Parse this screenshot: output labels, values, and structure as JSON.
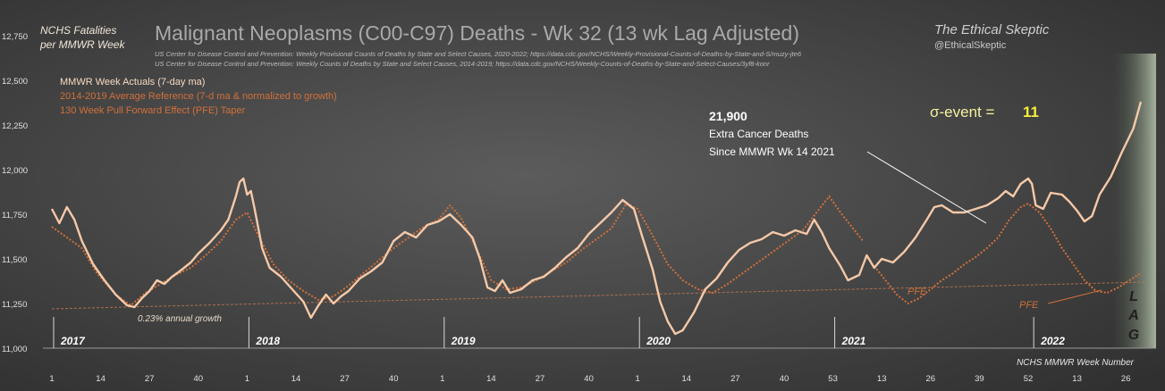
{
  "chart_data": {
    "type": "line",
    "title": "Malignant Neoplasms (C00-C97) Deaths - Wk 32 (13 wk Lag Adjusted)",
    "sources": [
      "US Center for Disease Control and Prevention: Weekly  Provisional Counts of Deaths by State and Select Causes, 2020-2022; https://data.cdc.gov/NCHS/Weekly-Provisional-Counts-of-Deaths-by-State-and-S/muzy-jte6",
      "US Center for Disease Control and Prevention: Weekly  Counts of Deaths by State and Select Causes, 2014-2019; https://data.cdc.gov/NCHS/Weekly-Counts-of-Deaths-by-State-and-Select-Causes/3yf8-konr"
    ],
    "brand": {
      "name": "The Ethical Skeptic",
      "handle": "@EthicalSkeptic"
    },
    "ylabel": "NCHS Fatalities\nper MMWR Week",
    "xlabel": "NCHS MMWR Week Number",
    "ylim": [
      11000,
      12750
    ],
    "yticks": [
      "11,000",
      "11,250",
      "11,500",
      "11,750",
      "12,000",
      "12,250",
      "12,500",
      "12,750"
    ],
    "xticks": [
      "1",
      "14",
      "27",
      "40",
      "1",
      "14",
      "27",
      "40",
      "1",
      "14",
      "27",
      "40",
      "1",
      "14",
      "27",
      "40",
      "53",
      "13",
      "26",
      "39",
      "52",
      "13",
      "26"
    ],
    "years": [
      "2017",
      "2018",
      "2019",
      "2020",
      "2021",
      "2022"
    ],
    "legend": [
      "MMWR Week Actuals (7-day ma)",
      "2014-2019 Average Reference  (7-d ma & normalized to growth)",
      "130 Week Pull Forward Effect (PFE) Taper"
    ],
    "annotations": {
      "growth": "0.23% annual growth",
      "excess_value": "21,900",
      "excess_line1": "Extra Cancer Deaths",
      "excess_line2": "Since MMWR  Wk 14 2021",
      "sigma_label": "σ-event  =",
      "sigma_value": "11",
      "pfe": "PFE",
      "lag": [
        "L",
        "A",
        "G"
      ]
    },
    "trend_line": {
      "x": [
        1,
        292
      ],
      "y": [
        11220,
        11370
      ]
    },
    "series": [
      {
        "name": "MMWR Week Actuals (7-day ma)",
        "color": "#f6c9a8",
        "points": [
          [
            1,
            11780
          ],
          [
            3,
            11700
          ],
          [
            5,
            11790
          ],
          [
            7,
            11720
          ],
          [
            9,
            11600
          ],
          [
            12,
            11470
          ],
          [
            15,
            11380
          ],
          [
            18,
            11300
          ],
          [
            21,
            11240
          ],
          [
            23,
            11230
          ],
          [
            25,
            11280
          ],
          [
            27,
            11320
          ],
          [
            29,
            11380
          ],
          [
            31,
            11360
          ],
          [
            33,
            11400
          ],
          [
            35,
            11430
          ],
          [
            38,
            11480
          ],
          [
            40,
            11530
          ],
          [
            43,
            11590
          ],
          [
            46,
            11660
          ],
          [
            48,
            11720
          ],
          [
            50,
            11850
          ],
          [
            51,
            11930
          ],
          [
            52,
            11950
          ],
          [
            53,
            11860
          ],
          [
            54,
            11880
          ],
          [
            55,
            11780
          ],
          [
            57,
            11560
          ],
          [
            59,
            11450
          ],
          [
            62,
            11400
          ],
          [
            65,
            11330
          ],
          [
            68,
            11260
          ],
          [
            70,
            11170
          ],
          [
            72,
            11240
          ],
          [
            74,
            11300
          ],
          [
            76,
            11250
          ],
          [
            78,
            11290
          ],
          [
            80,
            11320
          ],
          [
            83,
            11390
          ],
          [
            86,
            11430
          ],
          [
            89,
            11480
          ],
          [
            92,
            11600
          ],
          [
            95,
            11650
          ],
          [
            98,
            11620
          ],
          [
            101,
            11690
          ],
          [
            104,
            11710
          ],
          [
            107,
            11750
          ],
          [
            110,
            11690
          ],
          [
            113,
            11620
          ],
          [
            115,
            11500
          ],
          [
            117,
            11340
          ],
          [
            119,
            11320
          ],
          [
            121,
            11380
          ],
          [
            123,
            11310
          ],
          [
            126,
            11330
          ],
          [
            129,
            11380
          ],
          [
            132,
            11400
          ],
          [
            135,
            11450
          ],
          [
            138,
            11510
          ],
          [
            141,
            11560
          ],
          [
            144,
            11640
          ],
          [
            147,
            11700
          ],
          [
            150,
            11760
          ],
          [
            153,
            11830
          ],
          [
            156,
            11780
          ],
          [
            158,
            11640
          ],
          [
            161,
            11440
          ],
          [
            163,
            11260
          ],
          [
            165,
            11150
          ],
          [
            167,
            11080
          ],
          [
            169,
            11100
          ],
          [
            172,
            11200
          ],
          [
            175,
            11330
          ],
          [
            178,
            11390
          ],
          [
            181,
            11480
          ],
          [
            184,
            11550
          ],
          [
            187,
            11590
          ],
          [
            190,
            11610
          ],
          [
            193,
            11650
          ],
          [
            196,
            11630
          ],
          [
            199,
            11660
          ],
          [
            202,
            11640
          ],
          [
            204,
            11720
          ],
          [
            206,
            11650
          ],
          [
            208,
            11560
          ],
          [
            211,
            11460
          ],
          [
            213,
            11380
          ],
          [
            216,
            11410
          ],
          [
            218,
            11520
          ],
          [
            220,
            11450
          ],
          [
            222,
            11500
          ],
          [
            225,
            11480
          ],
          [
            228,
            11540
          ],
          [
            231,
            11620
          ],
          [
            234,
            11720
          ],
          [
            236,
            11790
          ],
          [
            238,
            11800
          ],
          [
            241,
            11760
          ],
          [
            244,
            11760
          ],
          [
            247,
            11780
          ],
          [
            250,
            11800
          ],
          [
            253,
            11840
          ],
          [
            255,
            11880
          ],
          [
            257,
            11850
          ],
          [
            259,
            11920
          ],
          [
            261,
            11950
          ],
          [
            262,
            11920
          ],
          [
            263,
            11800
          ],
          [
            265,
            11780
          ],
          [
            267,
            11870
          ],
          [
            270,
            11860
          ],
          [
            272,
            11820
          ],
          [
            274,
            11770
          ],
          [
            276,
            11710
          ],
          [
            278,
            11740
          ],
          [
            280,
            11860
          ],
          [
            283,
            11960
          ],
          [
            286,
            12100
          ],
          [
            289,
            12230
          ],
          [
            291,
            12380
          ]
        ]
      },
      {
        "name": "2014-2019 Average Reference  (7-d ma & normalized to growth)",
        "color": "#d2703a",
        "points": [
          [
            1,
            11680
          ],
          [
            5,
            11620
          ],
          [
            9,
            11560
          ],
          [
            13,
            11420
          ],
          [
            18,
            11300
          ],
          [
            22,
            11240
          ],
          [
            26,
            11310
          ],
          [
            30,
            11360
          ],
          [
            34,
            11410
          ],
          [
            38,
            11450
          ],
          [
            42,
            11520
          ],
          [
            46,
            11600
          ],
          [
            50,
            11720
          ],
          [
            53,
            11760
          ],
          [
            56,
            11630
          ],
          [
            60,
            11470
          ],
          [
            64,
            11380
          ],
          [
            68,
            11320
          ],
          [
            72,
            11270
          ],
          [
            76,
            11290
          ],
          [
            80,
            11350
          ],
          [
            84,
            11420
          ],
          [
            88,
            11490
          ],
          [
            92,
            11560
          ],
          [
            96,
            11620
          ],
          [
            100,
            11680
          ],
          [
            104,
            11720
          ],
          [
            107,
            11800
          ],
          [
            110,
            11730
          ],
          [
            114,
            11560
          ],
          [
            118,
            11380
          ],
          [
            122,
            11330
          ],
          [
            126,
            11340
          ],
          [
            130,
            11380
          ],
          [
            134,
            11430
          ],
          [
            138,
            11480
          ],
          [
            142,
            11550
          ],
          [
            146,
            11610
          ],
          [
            150,
            11670
          ],
          [
            154,
            11810
          ],
          [
            157,
            11780
          ],
          [
            161,
            11630
          ],
          [
            165,
            11470
          ],
          [
            169,
            11380
          ],
          [
            173,
            11330
          ],
          [
            177,
            11310
          ],
          [
            181,
            11360
          ],
          [
            185,
            11420
          ],
          [
            189,
            11480
          ],
          [
            193,
            11540
          ],
          [
            197,
            11600
          ],
          [
            201,
            11660
          ],
          [
            205,
            11770
          ],
          [
            208,
            11850
          ],
          [
            211,
            11760
          ],
          [
            214,
            11680
          ],
          [
            217,
            11600
          ]
        ]
      },
      {
        "name": "130 Week Pull Forward Effect (PFE) Taper",
        "color": "#d2703a",
        "points": [
          [
            220,
            11460
          ],
          [
            223,
            11380
          ],
          [
            226,
            11300
          ],
          [
            229,
            11250
          ],
          [
            232,
            11280
          ],
          [
            235,
            11330
          ],
          [
            238,
            11380
          ],
          [
            241,
            11420
          ],
          [
            244,
            11470
          ],
          [
            247,
            11510
          ],
          [
            250,
            11560
          ],
          [
            253,
            11620
          ],
          [
            256,
            11720
          ],
          [
            259,
            11790
          ],
          [
            261,
            11810
          ],
          [
            264,
            11760
          ],
          [
            267,
            11670
          ],
          [
            270,
            11560
          ],
          [
            273,
            11470
          ],
          [
            276,
            11380
          ],
          [
            279,
            11320
          ],
          [
            282,
            11310
          ],
          [
            285,
            11340
          ],
          [
            288,
            11380
          ],
          [
            291,
            11420
          ]
        ]
      }
    ]
  }
}
